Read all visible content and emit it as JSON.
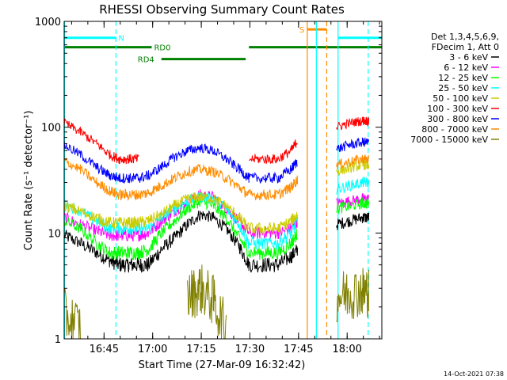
{
  "chart_data": {
    "type": "line",
    "title": "RHESSI Observing Summary Count Rates",
    "xlabel": "Start Time (27-Mar-09 16:32:42)",
    "ylabel": "Count Rate (s⁻¹ detector⁻¹)",
    "timestamp": "14-Oct-2021 07:38",
    "y_scale": "log",
    "ylim": [
      1,
      1000
    ],
    "x_units": "minutes after 16:32:42",
    "xlim": [
      0,
      98
    ],
    "x_ticks": [
      {
        "label": "16:45",
        "value": 12.3
      },
      {
        "label": "17:00",
        "value": 27.3
      },
      {
        "label": "17:15",
        "value": 42.3
      },
      {
        "label": "17:30",
        "value": 57.3
      },
      {
        "label": "17:45",
        "value": 72.3
      },
      {
        "label": "18:00",
        "value": 87.3
      }
    ],
    "y_ticks": [
      {
        "label": "1",
        "value": 1
      },
      {
        "label": "10",
        "value": 10
      },
      {
        "label": "100",
        "value": 100
      },
      {
        "label": "1000",
        "value": 1000
      }
    ],
    "legend": {
      "placement": "right",
      "header": [
        "Det 1,3,4,5,6,9,",
        "FDecim 1, Att 0"
      ],
      "entries": [
        {
          "label": "3 - 6 keV",
          "color": "#000000"
        },
        {
          "label": "6 - 12 keV",
          "color": "#ff00ff"
        },
        {
          "label": "12 - 25 keV",
          "color": "#00ff00"
        },
        {
          "label": "25 - 50 keV",
          "color": "#00ffff"
        },
        {
          "label": "50 - 100 keV",
          "color": "#cccc00"
        },
        {
          "label": "100 - 300 keV",
          "color": "#ff0000"
        },
        {
          "label": "300 - 800 keV",
          "color": "#0000ff"
        },
        {
          "label": "800 - 7000 keV",
          "color": "#ff8c00"
        },
        {
          "label": "7000 - 15000 keV",
          "color": "#808000"
        }
      ]
    },
    "x": [
      0,
      5,
      10,
      14,
      17,
      20,
      23,
      26,
      30,
      34,
      38,
      42,
      46,
      50,
      54,
      57,
      62,
      66,
      70,
      72,
      76,
      80,
      84,
      88,
      92,
      94
    ],
    "series": [
      {
        "name": "3 - 6 keV",
        "color": "#000000",
        "values": [
          9.5,
          8,
          6.5,
          5.5,
          5.0,
          5.0,
          5.0,
          5.0,
          7,
          9,
          12,
          15,
          14,
          11,
          7.5,
          5.0,
          5.0,
          5.0,
          6,
          7,
          null,
          null,
          12,
          13,
          14,
          14
        ]
      },
      {
        "name": "6 - 12 keV",
        "color": "#ff00ff",
        "values": [
          14,
          12,
          10.5,
          9.5,
          9.5,
          9.5,
          9.5,
          10,
          13,
          16,
          20,
          23,
          22,
          17,
          13,
          10,
          10,
          10,
          11,
          13,
          null,
          null,
          19,
          20,
          21,
          21
        ]
      },
      {
        "name": "12 - 25 keV",
        "color": "#00ff00",
        "values": [
          13,
          11,
          8,
          6.5,
          6.5,
          6.5,
          6.5,
          7,
          10,
          13,
          17,
          20,
          18,
          14,
          9,
          6.5,
          6.5,
          6.5,
          8,
          10,
          null,
          null,
          17,
          18,
          19,
          19
        ]
      },
      {
        "name": "25 - 50 keV",
        "color": "#00ffff",
        "values": [
          19,
          16,
          13,
          11,
          11,
          11,
          11,
          11,
          14,
          17,
          20,
          22,
          21,
          17,
          12,
          8,
          8,
          8,
          10,
          13,
          null,
          null,
          26,
          28,
          30,
          30
        ]
      },
      {
        "name": "50 - 100 keV",
        "color": "#cccc00",
        "values": [
          18,
          16,
          14,
          12.5,
          12.5,
          12.5,
          12.5,
          13,
          15,
          18,
          21,
          22,
          21,
          18,
          14,
          11,
          11,
          11,
          13,
          15,
          null,
          null,
          38,
          41,
          44,
          44
        ]
      },
      {
        "name": "100 - 300 keV",
        "color": "#ff0000",
        "values": [
          110,
          90,
          70,
          55,
          50,
          50,
          50,
          null,
          null,
          null,
          null,
          null,
          null,
          null,
          null,
          50,
          50,
          50,
          60,
          75,
          null,
          null,
          100,
          110,
          115,
          115
        ]
      },
      {
        "name": "300 - 800 keV",
        "color": "#0000ff",
        "values": [
          68,
          55,
          42,
          35,
          33,
          33,
          33,
          35,
          42,
          52,
          60,
          64,
          60,
          50,
          40,
          33,
          33,
          33,
          40,
          48,
          null,
          null,
          62,
          68,
          72,
          72
        ]
      },
      {
        "name": "800 - 7000 keV",
        "color": "#ff8c00",
        "values": [
          48,
          40,
          30,
          25,
          23,
          23,
          23,
          24,
          28,
          33,
          38,
          40,
          38,
          33,
          27,
          23,
          23,
          23,
          27,
          32,
          null,
          null,
          44,
          47,
          50,
          50
        ]
      },
      {
        "name": "7000 - 15000 keV",
        "color": "#808000",
        "values": [
          1.7,
          1.3,
          null,
          null,
          null,
          null,
          null,
          null,
          null,
          null,
          2.5,
          3.0,
          2.3,
          1.2,
          null,
          null,
          null,
          null,
          null,
          null,
          null,
          null,
          2.5,
          2.7,
          2.8,
          2.8
        ]
      }
    ],
    "annotations": {
      "spans": [
        {
          "label": "N",
          "color": "#00ffff",
          "x0": 0,
          "x1": 16,
          "y": 700
        },
        {
          "label": "RD0",
          "color": "#008000",
          "x0": 0,
          "x1": 27,
          "y": 570
        },
        {
          "label": "RD4",
          "color": "#008000",
          "x0": 30,
          "x1": 56,
          "y": 440
        },
        {
          "label": "",
          "color": "#008000",
          "x0": 57,
          "x1": 98,
          "y": 570
        },
        {
          "label": "S",
          "color": "#ff8c00",
          "x0": 75,
          "x1": 81,
          "y": 840
        },
        {
          "label": "",
          "color": "#00ffff",
          "x0": 84.5,
          "x1": 98,
          "y": 700
        }
      ],
      "vlines": [
        {
          "x": 0.1,
          "color": "#00ffff",
          "style": "solid"
        },
        {
          "x": 16,
          "color": "#00ffff",
          "style": "dashed"
        },
        {
          "x": 75,
          "color": "#ff8c00",
          "style": "solid"
        },
        {
          "x": 77.8,
          "color": "#00ffff",
          "style": "solid"
        },
        {
          "x": 81,
          "color": "#ff8c00",
          "style": "dashed"
        },
        {
          "x": 84.5,
          "color": "#00ffff",
          "style": "solid"
        },
        {
          "x": 93.8,
          "color": "#00ffff",
          "style": "dashed"
        }
      ]
    }
  }
}
